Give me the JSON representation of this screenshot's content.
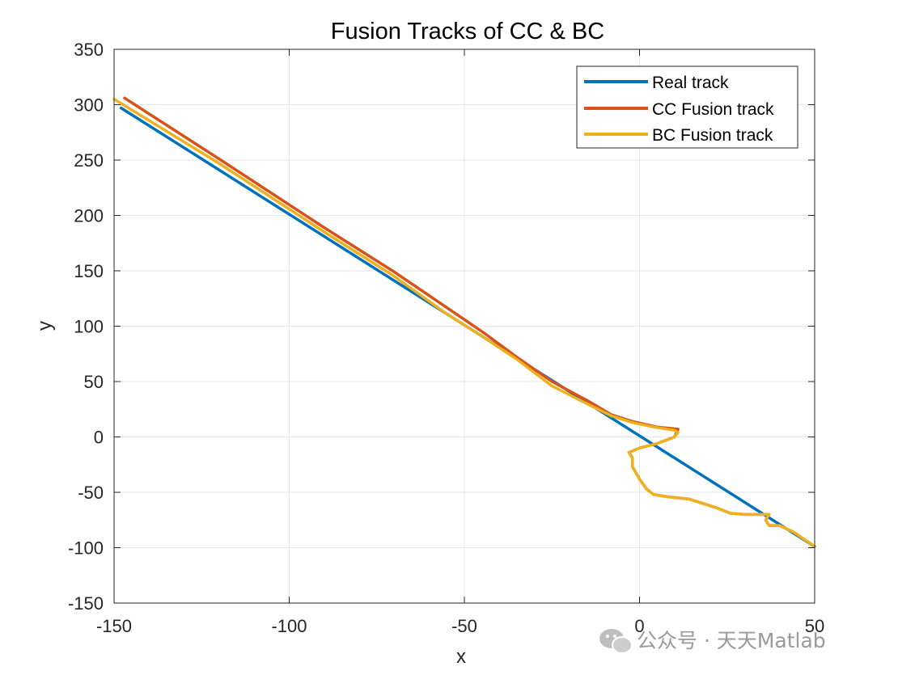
{
  "chart_data": {
    "type": "line",
    "title": "Fusion Tracks of CC & BC",
    "xlabel": "x",
    "ylabel": "y",
    "xlim": [
      -150,
      50
    ],
    "ylim": [
      -150,
      350
    ],
    "xticks": [
      -150,
      -100,
      -50,
      0,
      50
    ],
    "yticks": [
      -150,
      -100,
      -50,
      0,
      50,
      100,
      150,
      200,
      250,
      300,
      350
    ],
    "grid": true,
    "legend_position": "top-right",
    "series": [
      {
        "name": "Real track",
        "color": "#0072BD",
        "points": [
          [
            -148,
            297
          ],
          [
            50,
            -99
          ]
        ]
      },
      {
        "name": "CC Fusion track",
        "color": "#D95319",
        "points": [
          [
            -147,
            306
          ],
          [
            -120,
            251
          ],
          [
            -90,
            189
          ],
          [
            -70,
            149
          ],
          [
            -50,
            106
          ],
          [
            -44,
            93
          ],
          [
            -35,
            72
          ],
          [
            -25,
            50
          ],
          [
            -15,
            33
          ],
          [
            -8,
            20
          ],
          [
            -2,
            14
          ],
          [
            5,
            9
          ],
          [
            11,
            7
          ],
          [
            10,
            0
          ],
          [
            5,
            -6
          ],
          [
            0,
            -10
          ],
          [
            -3,
            -14
          ],
          [
            -2,
            -19
          ],
          [
            -2,
            -27
          ],
          [
            0,
            -38
          ],
          [
            2,
            -47
          ],
          [
            4,
            -52
          ],
          [
            8,
            -54
          ],
          [
            14,
            -56
          ],
          [
            18,
            -60
          ],
          [
            22,
            -64
          ],
          [
            26,
            -69
          ],
          [
            30,
            -70
          ],
          [
            34,
            -70
          ],
          [
            37,
            -70
          ],
          [
            36,
            -75
          ],
          [
            37,
            -80
          ],
          [
            40,
            -80
          ],
          [
            44,
            -86
          ],
          [
            50,
            -99
          ]
        ]
      },
      {
        "name": "BC Fusion track",
        "color": "#EDB120",
        "points": [
          [
            -150,
            305
          ],
          [
            -120,
            247
          ],
          [
            -90,
            185
          ],
          [
            -70,
            145
          ],
          [
            -55,
            111
          ],
          [
            -45,
            91
          ],
          [
            -35,
            70
          ],
          [
            -25,
            46
          ],
          [
            -15,
            30
          ],
          [
            -8,
            19
          ],
          [
            -2,
            13
          ],
          [
            4,
            9
          ],
          [
            10,
            6
          ],
          [
            11,
            4
          ],
          [
            10,
            0
          ],
          [
            5,
            -6
          ],
          [
            0,
            -10
          ],
          [
            -3,
            -14
          ],
          [
            -2,
            -19
          ],
          [
            -2,
            -27
          ],
          [
            0,
            -38
          ],
          [
            2,
            -47
          ],
          [
            4,
            -52
          ],
          [
            8,
            -54
          ],
          [
            14,
            -56
          ],
          [
            18,
            -60
          ],
          [
            22,
            -64
          ],
          [
            26,
            -69
          ],
          [
            30,
            -70
          ],
          [
            34,
            -70
          ],
          [
            37,
            -70
          ],
          [
            36,
            -75
          ],
          [
            37,
            -80
          ],
          [
            40,
            -80
          ],
          [
            44,
            -86
          ],
          [
            50,
            -99
          ]
        ]
      }
    ]
  },
  "watermark": {
    "text": "公众号 · 天天Matlab",
    "icon": "wechat-icon"
  }
}
